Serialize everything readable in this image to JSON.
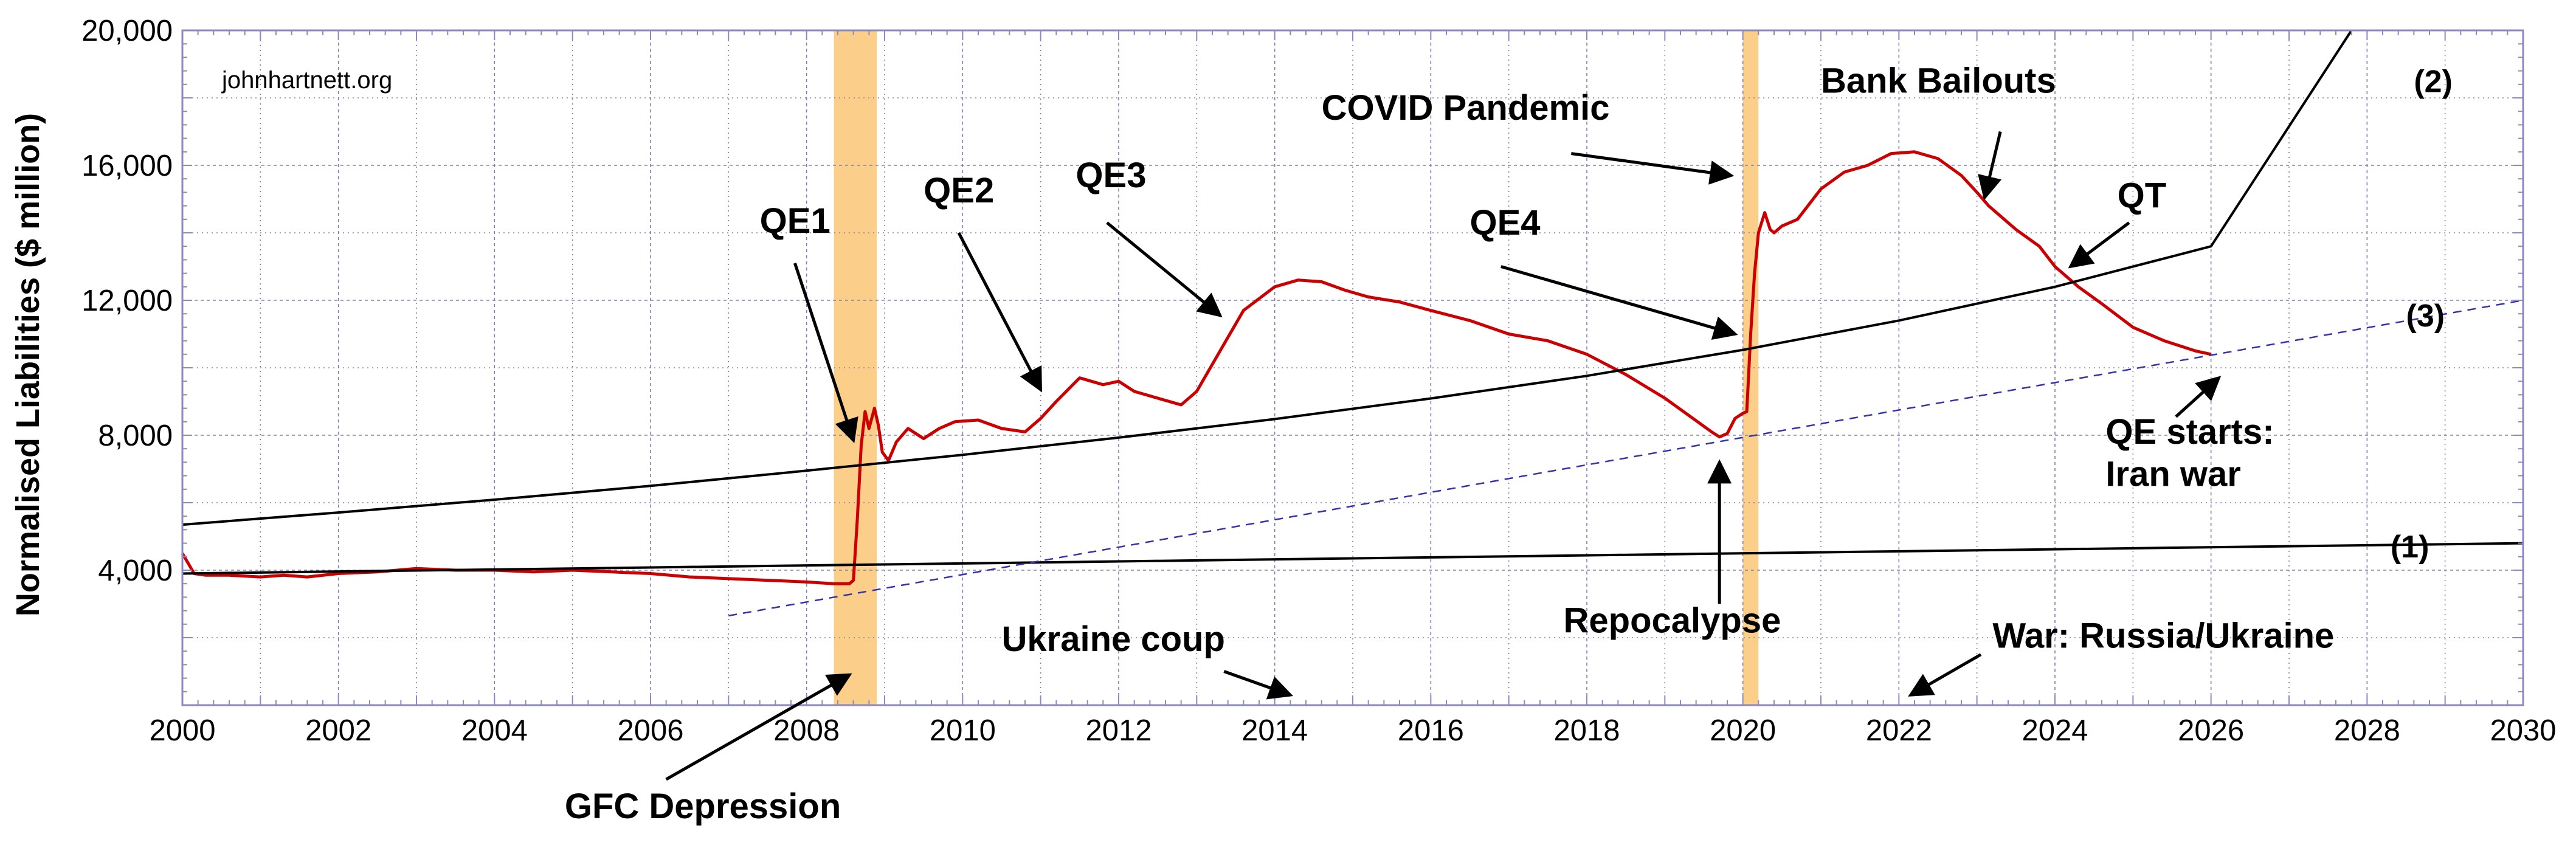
{
  "chart_data": {
    "type": "line",
    "title": "",
    "watermark": "johnhartnett.org",
    "xlabel": "",
    "ylabel": "Normalised Liabilities ($ million)",
    "xlim": [
      2000,
      2030
    ],
    "ylim": [
      0,
      20000
    ],
    "x_ticks": [
      2000,
      2002,
      2004,
      2006,
      2008,
      2010,
      2012,
      2014,
      2016,
      2018,
      2020,
      2022,
      2024,
      2026,
      2028,
      2030
    ],
    "x_tick_labels": [
      "2000",
      "2002",
      "2004",
      "2006",
      "2008",
      "2010",
      "2012",
      "2014",
      "2016",
      "2018",
      "2020",
      "2022",
      "2024",
      "2026",
      "2028",
      "2030"
    ],
    "y_ticks": [
      4000,
      8000,
      12000,
      16000,
      20000
    ],
    "y_tick_labels": [
      "4,000",
      "8,000",
      "12,000",
      "16,000",
      "20,000"
    ],
    "grid": true,
    "colors": {
      "liabilities": "#cc0000",
      "trend": "#000000",
      "trend_dashed": "#3333aa",
      "shade": "#fbcf8a",
      "grid": "#8080b0",
      "axis": "#8a8ac0"
    },
    "shaded_regions": [
      {
        "name": "GFC",
        "x0": 2008.35,
        "x1": 2008.9
      },
      {
        "name": "COVID",
        "x0": 2020.0,
        "x1": 2020.2
      }
    ],
    "series": [
      {
        "name": "Normalised Liabilities",
        "style": "solid",
        "x": [
          2000.0,
          2000.15,
          2000.3,
          2000.6,
          2001.0,
          2001.3,
          2001.6,
          2002.0,
          2002.5,
          2003.0,
          2003.5,
          2004.0,
          2004.5,
          2005.0,
          2005.5,
          2006.0,
          2006.5,
          2007.0,
          2007.5,
          2008.0,
          2008.35,
          2008.55,
          2008.6,
          2008.65,
          2008.7,
          2008.75,
          2008.8,
          2008.87,
          2008.92,
          2008.97,
          2009.05,
          2009.15,
          2009.3,
          2009.5,
          2009.7,
          2009.9,
          2010.2,
          2010.5,
          2010.8,
          2011.0,
          2011.2,
          2011.5,
          2011.8,
          2012.0,
          2012.2,
          2012.5,
          2012.8,
          2013.0,
          2013.3,
          2013.6,
          2014.0,
          2014.3,
          2014.6,
          2014.9,
          2015.2,
          2015.6,
          2016.0,
          2016.5,
          2017.0,
          2017.5,
          2018.0,
          2018.5,
          2019.0,
          2019.3,
          2019.6,
          2019.7,
          2019.8,
          2019.9,
          2020.0,
          2020.05,
          2020.1,
          2020.15,
          2020.2,
          2020.28,
          2020.35,
          2020.4,
          2020.5,
          2020.7,
          2021.0,
          2021.3,
          2021.6,
          2021.9,
          2022.2,
          2022.5,
          2022.8,
          2023.0,
          2023.15,
          2023.3,
          2023.5,
          2023.8,
          2024.0,
          2024.3,
          2024.6,
          2025.0,
          2025.4,
          2025.8,
          2026.0
        ],
        "y": [
          4500,
          3900,
          3850,
          3850,
          3800,
          3850,
          3800,
          3900,
          3950,
          4050,
          4000,
          4000,
          3950,
          4000,
          3950,
          3900,
          3800,
          3750,
          3700,
          3650,
          3600,
          3600,
          3700,
          5500,
          7700,
          8700,
          8200,
          8800,
          8300,
          7500,
          7250,
          7800,
          8200,
          7900,
          8200,
          8400,
          8450,
          8200,
          8100,
          8500,
          9000,
          9700,
          9500,
          9600,
          9300,
          9100,
          8900,
          9300,
          10500,
          11700,
          12400,
          12600,
          12550,
          12300,
          12100,
          11950,
          11700,
          11400,
          11000,
          10800,
          10400,
          9800,
          9100,
          8600,
          8100,
          7950,
          8050,
          8500,
          8650,
          8700,
          11000,
          12800,
          14000,
          14600,
          14100,
          14000,
          14200,
          14400,
          15300,
          15800,
          16000,
          16350,
          16400,
          16200,
          15700,
          15200,
          14800,
          14500,
          14100,
          13600,
          13000,
          12400,
          11900,
          11200,
          10800,
          10500,
          10400
        ]
      },
      {
        "name": "(1)",
        "style": "solid",
        "x": [
          2000,
          2030
        ],
        "y": [
          3900,
          4800
        ]
      },
      {
        "name": "(2)",
        "style": "solid",
        "x": [
          2000,
          2002,
          2004,
          2006,
          2008,
          2010,
          2012,
          2014,
          2016,
          2018,
          2020,
          2022,
          2024,
          2026,
          2027.8
        ],
        "y": [
          5350,
          5710,
          6090,
          6500,
          6950,
          7420,
          7930,
          8480,
          9090,
          9760,
          10530,
          11400,
          12400,
          13600,
          20000
        ]
      },
      {
        "name": "(3)",
        "style": "dashed",
        "x": [
          2007,
          2030
        ],
        "y": [
          2650,
          12000
        ]
      }
    ],
    "line_labels": [
      {
        "text": "(1)",
        "x": 2028.3,
        "y": 4700
      },
      {
        "text": "(2)",
        "x": 2028.6,
        "y": 18500
      },
      {
        "text": "(3)",
        "x": 2028.5,
        "y": 11550
      }
    ],
    "annotations": [
      {
        "text": "QE1",
        "x": 2007.4,
        "y": 14000,
        "arrow_from": [
          2007.85,
          13100
        ],
        "arrow_to": [
          2008.6,
          7850
        ]
      },
      {
        "text": "QE2",
        "x": 2009.5,
        "y": 14900,
        "arrow_from": [
          2009.95,
          14000
        ],
        "arrow_to": [
          2011.0,
          9350
        ]
      },
      {
        "text": "QE3",
        "x": 2011.45,
        "y": 15350,
        "arrow_from": [
          2011.85,
          14300
        ],
        "arrow_to": [
          2013.3,
          11550
        ]
      },
      {
        "text": "QE4",
        "x": 2016.5,
        "y": 13950,
        "arrow_from": [
          2016.9,
          13000
        ],
        "arrow_to": [
          2019.9,
          11000
        ]
      },
      {
        "text": "COVID Pandemic",
        "x": 2014.6,
        "y": 17350,
        "arrow_from": [
          2017.8,
          16350
        ],
        "arrow_to": [
          2019.85,
          15700
        ]
      },
      {
        "text": "Bank Bailouts",
        "x": 2021.0,
        "y": 18150,
        "arrow_from": [
          2023.3,
          17000
        ],
        "arrow_to": [
          2023.1,
          15050
        ]
      },
      {
        "text": "QT",
        "x": 2024.8,
        "y": 14750,
        "arrow_from": [
          2024.95,
          14300
        ],
        "arrow_to": [
          2024.2,
          13000
        ]
      },
      {
        "text": "QE starts:",
        "x": 2024.65,
        "y": 7750,
        "arrow_from": [
          2025.55,
          8550
        ],
        "arrow_to": [
          2026.1,
          9700
        ]
      },
      {
        "text": "Iran war",
        "x": 2024.65,
        "y": 6500
      },
      {
        "text": "Repocalypse",
        "x": 2017.7,
        "y": 2150,
        "arrow_from": [
          2019.7,
          3000
        ],
        "arrow_to": [
          2019.7,
          7200
        ]
      },
      {
        "text": "Ukraine coup",
        "x": 2010.5,
        "y": 1600,
        "arrow_from": [
          2013.35,
          1000
        ],
        "arrow_to": [
          2014.2,
          300
        ]
      },
      {
        "text": "War: Russia/Ukraine",
        "x": 2023.2,
        "y": 1700,
        "arrow_from": [
          2023.05,
          1500
        ],
        "arrow_to": [
          2022.15,
          300
        ]
      },
      {
        "text": "GFC Depression",
        "x": 2004.9,
        "y": -3350,
        "arrow_from": [
          2006.2,
          -2200
        ],
        "arrow_to": [
          2008.55,
          900
        ]
      }
    ]
  }
}
